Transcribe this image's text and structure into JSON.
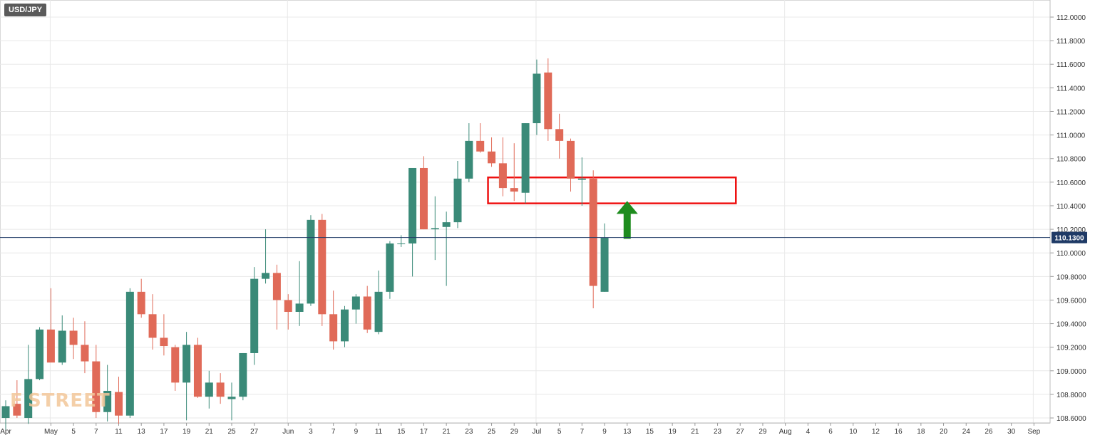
{
  "symbol": "USD/JPY",
  "watermark": "F STREET",
  "chart_data": {
    "type": "candlestick",
    "title": "USD/JPY",
    "price_axis": {
      "ylim": [
        108.55,
        112.1
      ],
      "ticks": [
        "112.0000",
        "111.8000",
        "111.6000",
        "111.4000",
        "111.2000",
        "111.0000",
        "110.8000",
        "110.6000",
        "110.4000",
        "110.2000",
        "110.0000",
        "109.8000",
        "109.6000",
        "109.4000",
        "109.2000",
        "109.0000",
        "108.8000",
        "108.6000"
      ],
      "tick_values": [
        112.0,
        111.8,
        111.6,
        111.4,
        111.2,
        111.0,
        110.8,
        110.6,
        110.4,
        110.2,
        110.0,
        109.8,
        109.6,
        109.4,
        109.2,
        109.0,
        108.8,
        108.6
      ]
    },
    "time_axis": {
      "labels": [
        "Apr",
        "May",
        "5",
        "7",
        "11",
        "13",
        "17",
        "19",
        "21",
        "25",
        "27",
        "Jun",
        "3",
        "7",
        "9",
        "11",
        "15",
        "17",
        "21",
        "23",
        "25",
        "29",
        "Jul",
        "5",
        "7",
        "9",
        "13",
        "15",
        "19",
        "21",
        "23",
        "27",
        "29",
        "Aug",
        "4",
        "6",
        "10",
        "12",
        "16",
        "18",
        "20",
        "24",
        "26",
        "30",
        "Sep"
      ],
      "label_slots": [
        0,
        4,
        6,
        8,
        10,
        12,
        14,
        16,
        18,
        20,
        22,
        25,
        27,
        29,
        31,
        33,
        35,
        37,
        39,
        41,
        43,
        45,
        47,
        49,
        51,
        53,
        55,
        57,
        59,
        61,
        63,
        65,
        67,
        69,
        71,
        73,
        75,
        77,
        79,
        81,
        83,
        85,
        87,
        89,
        91
      ]
    },
    "current_price": {
      "value": 110.13,
      "label": "110.1300",
      "color": "#1f3a66"
    },
    "colors": {
      "up": "#3a8a78",
      "down": "#e06a58",
      "grid": "#e8e8e8",
      "zone": "#ee1111",
      "arrow": "#1e8c1e"
    },
    "candles": [
      {
        "o": 108.6,
        "h": 108.75,
        "l": 108.5,
        "c": 108.7
      },
      {
        "o": 108.72,
        "h": 108.92,
        "l": 108.6,
        "c": 108.62
      },
      {
        "o": 108.6,
        "h": 109.22,
        "l": 108.55,
        "c": 108.93
      },
      {
        "o": 108.93,
        "h": 109.37,
        "l": 108.92,
        "c": 109.35
      },
      {
        "o": 109.35,
        "h": 109.7,
        "l": 109.08,
        "c": 109.07
      },
      {
        "o": 109.07,
        "h": 109.47,
        "l": 109.05,
        "c": 109.34
      },
      {
        "o": 109.34,
        "h": 109.45,
        "l": 109.1,
        "c": 109.22
      },
      {
        "o": 109.22,
        "h": 109.42,
        "l": 108.98,
        "c": 109.08
      },
      {
        "o": 109.08,
        "h": 109.22,
        "l": 108.6,
        "c": 108.65
      },
      {
        "o": 108.65,
        "h": 109.05,
        "l": 108.57,
        "c": 108.83
      },
      {
        "o": 108.82,
        "h": 108.95,
        "l": 108.55,
        "c": 108.62
      },
      {
        "o": 108.62,
        "h": 109.7,
        "l": 108.6,
        "c": 109.67
      },
      {
        "o": 109.67,
        "h": 109.78,
        "l": 109.45,
        "c": 109.48
      },
      {
        "o": 109.48,
        "h": 109.65,
        "l": 109.18,
        "c": 109.28
      },
      {
        "o": 109.28,
        "h": 109.48,
        "l": 109.13,
        "c": 109.21
      },
      {
        "o": 109.2,
        "h": 109.22,
        "l": 108.83,
        "c": 108.9
      },
      {
        "o": 108.9,
        "h": 109.33,
        "l": 108.58,
        "c": 109.22
      },
      {
        "o": 109.22,
        "h": 109.28,
        "l": 108.77,
        "c": 108.78
      },
      {
        "o": 108.78,
        "h": 109.0,
        "l": 108.68,
        "c": 108.9
      },
      {
        "o": 108.9,
        "h": 108.98,
        "l": 108.72,
        "c": 108.78
      },
      {
        "o": 108.76,
        "h": 108.9,
        "l": 108.58,
        "c": 108.78
      },
      {
        "o": 108.78,
        "h": 109.15,
        "l": 108.75,
        "c": 109.15
      },
      {
        "o": 109.15,
        "h": 109.88,
        "l": 109.05,
        "c": 109.78
      },
      {
        "o": 109.78,
        "h": 110.2,
        "l": 109.74,
        "c": 109.83
      },
      {
        "o": 109.83,
        "h": 109.9,
        "l": 109.35,
        "c": 109.6
      },
      {
        "o": 109.6,
        "h": 109.65,
        "l": 109.35,
        "c": 109.5
      },
      {
        "o": 109.5,
        "h": 109.93,
        "l": 109.38,
        "c": 109.57
      },
      {
        "o": 109.57,
        "h": 110.32,
        "l": 109.55,
        "c": 110.28
      },
      {
        "o": 110.28,
        "h": 110.33,
        "l": 109.38,
        "c": 109.48
      },
      {
        "o": 109.48,
        "h": 109.68,
        "l": 109.18,
        "c": 109.25
      },
      {
        "o": 109.25,
        "h": 109.55,
        "l": 109.2,
        "c": 109.52
      },
      {
        "o": 109.52,
        "h": 109.65,
        "l": 109.4,
        "c": 109.63
      },
      {
        "o": 109.63,
        "h": 109.72,
        "l": 109.32,
        "c": 109.35
      },
      {
        "o": 109.33,
        "h": 109.85,
        "l": 109.31,
        "c": 109.67
      },
      {
        "o": 109.67,
        "h": 110.1,
        "l": 109.61,
        "c": 110.08
      },
      {
        "o": 110.08,
        "h": 110.15,
        "l": 110.05,
        "c": 110.08
      },
      {
        "o": 110.08,
        "h": 110.72,
        "l": 109.8,
        "c": 110.72
      },
      {
        "o": 110.72,
        "h": 110.82,
        "l": 110.2,
        "c": 110.2
      },
      {
        "o": 110.2,
        "h": 110.48,
        "l": 109.94,
        "c": 110.21
      },
      {
        "o": 110.22,
        "h": 110.35,
        "l": 109.72,
        "c": 110.26
      },
      {
        "o": 110.26,
        "h": 110.78,
        "l": 110.21,
        "c": 110.63
      },
      {
        "o": 110.63,
        "h": 111.1,
        "l": 110.6,
        "c": 110.95
      },
      {
        "o": 110.95,
        "h": 111.1,
        "l": 110.85,
        "c": 110.86
      },
      {
        "o": 110.86,
        "h": 110.98,
        "l": 110.73,
        "c": 110.76
      },
      {
        "o": 110.76,
        "h": 110.98,
        "l": 110.48,
        "c": 110.55
      },
      {
        "o": 110.55,
        "h": 110.93,
        "l": 110.44,
        "c": 110.52
      },
      {
        "o": 110.51,
        "h": 111.1,
        "l": 110.42,
        "c": 111.1
      },
      {
        "o": 111.1,
        "h": 111.64,
        "l": 111.0,
        "c": 111.52
      },
      {
        "o": 111.53,
        "h": 111.65,
        "l": 110.95,
        "c": 111.05
      },
      {
        "o": 111.05,
        "h": 111.18,
        "l": 110.8,
        "c": 110.95
      },
      {
        "o": 110.95,
        "h": 110.97,
        "l": 110.52,
        "c": 110.63
      },
      {
        "o": 110.62,
        "h": 110.81,
        "l": 110.4,
        "c": 110.63
      },
      {
        "o": 110.63,
        "h": 110.7,
        "l": 109.53,
        "c": 109.72
      },
      {
        "o": 109.67,
        "h": 110.25,
        "l": 109.67,
        "c": 110.13
      }
    ],
    "annotations": [
      {
        "type": "rectangle",
        "label": "",
        "y_top": 110.64,
        "y_bottom": 110.42,
        "from_candle": 43,
        "to_slot": 65
      },
      {
        "type": "arrow_up",
        "label": "",
        "slot": 55,
        "y_tip": 110.44,
        "y_base": 110.12
      }
    ]
  }
}
